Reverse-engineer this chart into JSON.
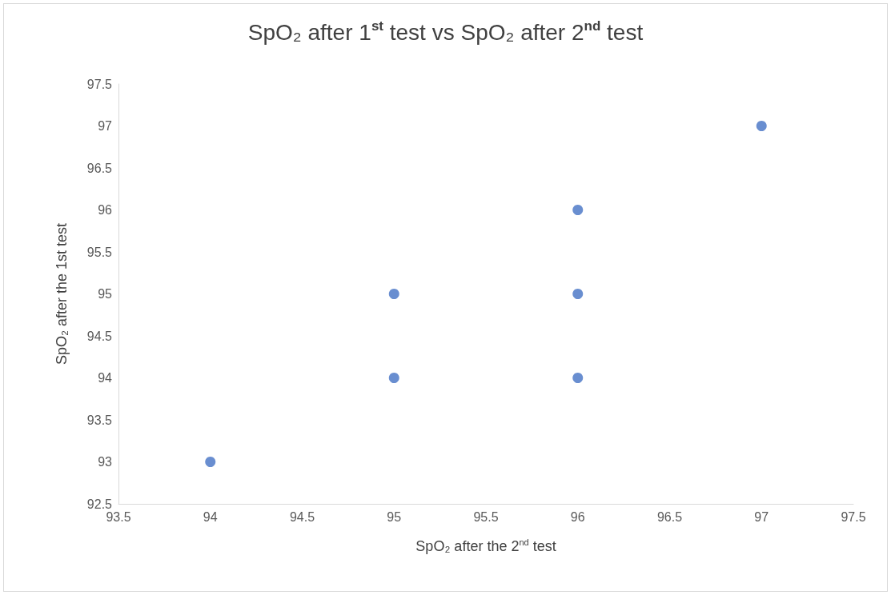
{
  "chart_data": {
    "type": "scatter",
    "title": "SpO₂ after 1$^{st}$ test vs SpO₂ after 2$^{nd}$ test",
    "xlabel": "SpO₂ after the 2$^{nd}$ test",
    "ylabel": "SpO₂ after the 1st test",
    "x": [
      94,
      95,
      95,
      96,
      96,
      96,
      97
    ],
    "series": [
      {
        "color": "#4472c4",
        "values": [
          93,
          94,
          95,
          94,
          95,
          96,
          97
        ]
      }
    ],
    "xlim": [
      93.5,
      97.5
    ],
    "xticks": [
      93.5,
      94,
      94.5,
      95,
      95.5,
      96,
      96.5,
      97,
      97.5
    ],
    "ylim": [
      92.5,
      97.5
    ],
    "yticks": [
      92.5,
      93,
      93.5,
      94,
      94.5,
      95,
      95.5,
      96,
      96.5,
      97,
      97.5
    ],
    "grid": false,
    "marker": "circle"
  }
}
